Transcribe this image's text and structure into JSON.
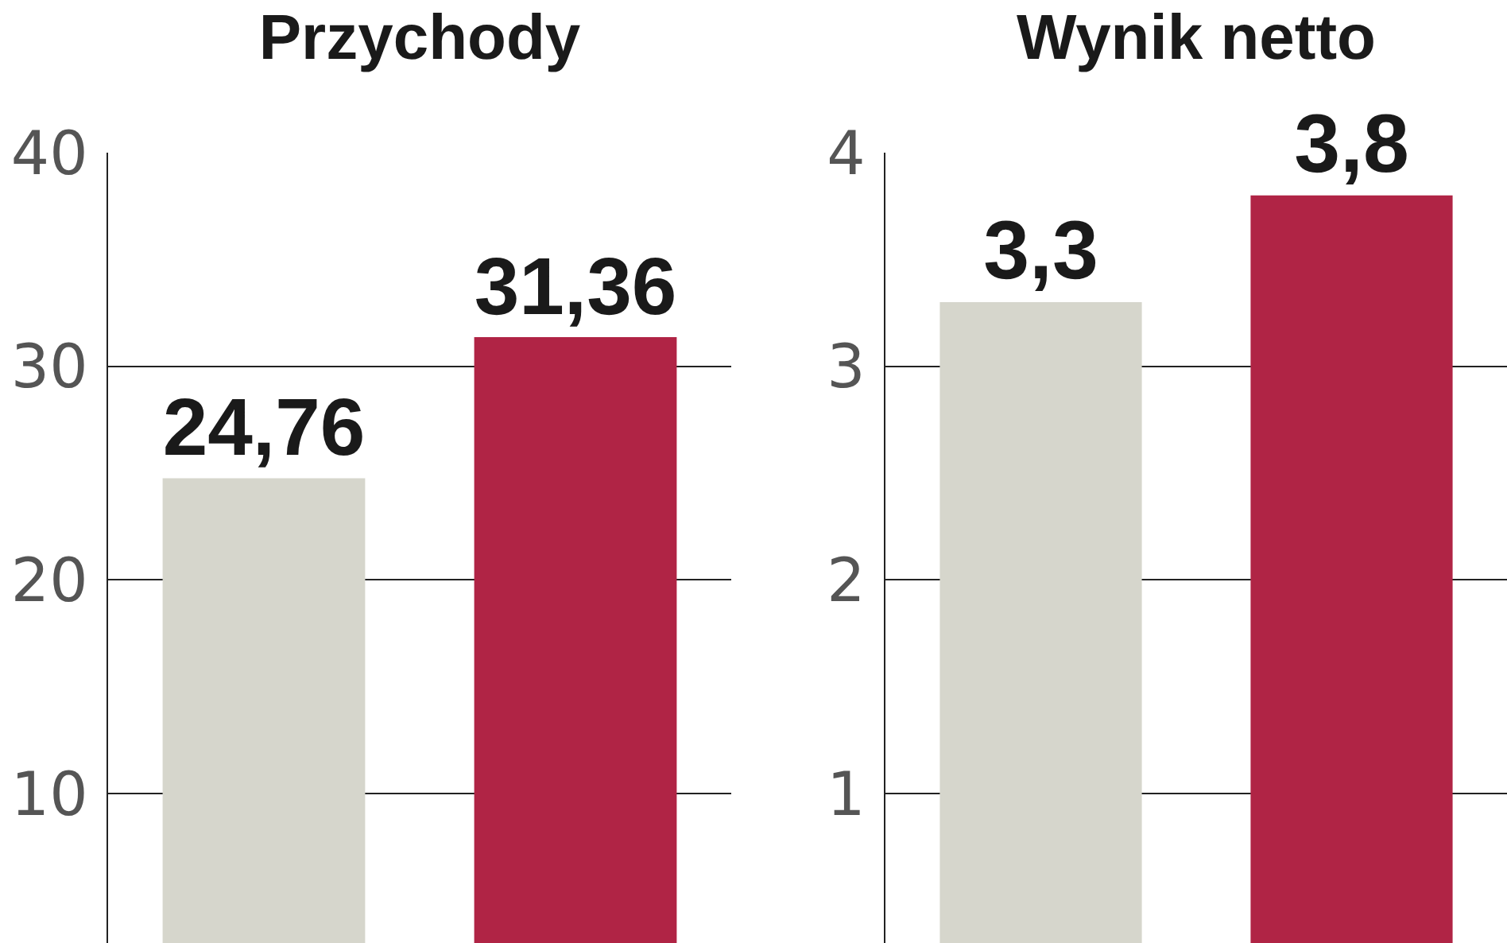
{
  "chart_data": [
    {
      "type": "bar",
      "title": "Przychody",
      "categories": [
        null,
        null
      ],
      "values": [
        24.76,
        31.36
      ],
      "colors": [
        "#d6d6cc",
        "#b02445"
      ],
      "value_labels": [
        "24,76",
        "31,36"
      ],
      "ylim": [
        3,
        40
      ],
      "yticks": [
        10,
        20,
        30,
        40
      ],
      "grid": "y",
      "tick_labels": "y"
    },
    {
      "type": "bar",
      "title": "Wynik netto",
      "categories": [
        null,
        null
      ],
      "values": [
        3.3,
        3.8
      ],
      "colors": [
        "#d6d6cc",
        "#b02445"
      ],
      "value_labels": [
        "3,3",
        "3,8"
      ],
      "ylim": [
        0.3,
        4
      ],
      "yticks": [
        1,
        2,
        3,
        4
      ],
      "grid": "y",
      "tick_labels": "y"
    }
  ]
}
